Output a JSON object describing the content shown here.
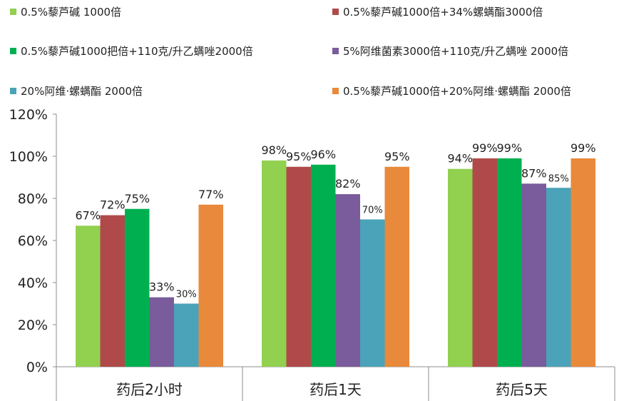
{
  "chart_data": {
    "type": "bar",
    "categories": [
      "药后2小时",
      "药后1天",
      "药后5天"
    ],
    "ylim": [
      0,
      120
    ],
    "yticks": [
      "0%",
      "20%",
      "40%",
      "60%",
      "80%",
      "100%",
      "120%"
    ],
    "grid": false,
    "legend_position": "top",
    "series": [
      {
        "name": "0.5%藜芦碱 1000倍",
        "color": "#92d050",
        "values": [
          67,
          98,
          94
        ],
        "labels": [
          "67%",
          "98%",
          "94%"
        ]
      },
      {
        "name": "0.5%藜芦碱1000倍+34%螺螨酯3000倍",
        "color": "#b04a4a",
        "values": [
          72,
          95,
          99
        ],
        "labels": [
          "72%",
          "95%",
          "99%"
        ]
      },
      {
        "name": "0.5%藜芦碱1000把倍+110克/升乙螨唑2000倍",
        "color": "#00b050",
        "values": [
          75,
          96,
          99
        ],
        "labels": [
          "75%",
          "96%",
          "99%"
        ]
      },
      {
        "name": "5%阿维菌素3000倍+110克/升乙螨唑 2000倍",
        "color": "#7a5c9c",
        "values": [
          33,
          82,
          87
        ],
        "labels": [
          "33%",
          "82%",
          "87%"
        ]
      },
      {
        "name": "20%阿维·螺螨酯 2000倍",
        "color": "#4aa3b8",
        "values": [
          30,
          70,
          85
        ],
        "labels": [
          "30%",
          "70%",
          "85%"
        ]
      },
      {
        "name": "0.5%藜芦碱1000倍+20%阿维·螺螨酯 2000倍",
        "color": "#e8893b",
        "values": [
          77,
          95,
          99
        ],
        "labels": [
          "77%",
          "95%",
          "99%"
        ]
      }
    ]
  }
}
